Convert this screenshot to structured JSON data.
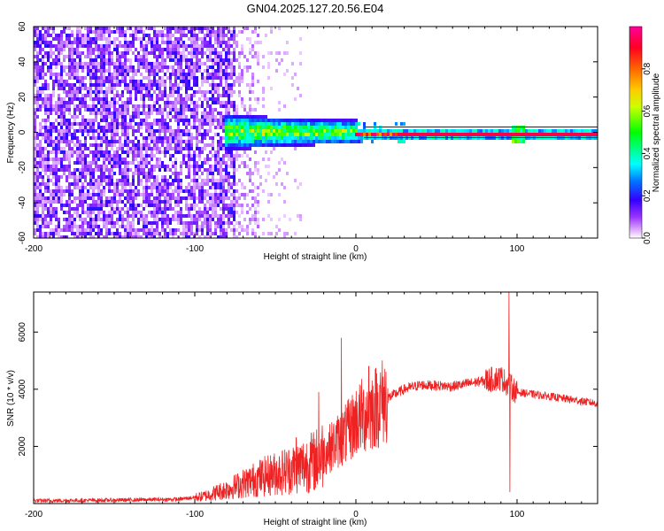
{
  "title": "GN04.2025.127.20.56.E04",
  "chart_data": [
    {
      "type": "heatmap",
      "xlabel": "Height of straight line (km)",
      "ylabel": "Frequency (Hz)",
      "xlim": [
        -200,
        150
      ],
      "ylim": [
        -60,
        60
      ],
      "xticks": [
        -200,
        -100,
        0,
        100
      ],
      "yticks": [
        -60,
        -40,
        -20,
        0,
        20,
        40,
        60
      ],
      "colorbar": {
        "label": "Normalized spectral amplitude",
        "range": [
          0.0,
          1.0
        ],
        "ticks": [
          0.0,
          0.2,
          0.4,
          0.6,
          0.8
        ],
        "tick_labels": [
          "0.0",
          "0.2",
          "0.4",
          "0.6",
          "0.8"
        ],
        "colors": [
          "#ffffff",
          "#cc88ff",
          "#7700ee",
          "#0000ff",
          "#00ffff",
          "#00ff00",
          "#ffff00",
          "#ff8800",
          "#ff0000",
          "#ff0099"
        ]
      },
      "regions": [
        {
          "x_range": [
            -200,
            -75
          ],
          "freq_range": [
            -60,
            60
          ],
          "amplitude": 0.1,
          "description_level": "noise"
        },
        {
          "x_range": [
            -75,
            -60
          ],
          "freq_range": [
            -60,
            60
          ],
          "amplitude": 0.05
        },
        {
          "x_range": [
            -80,
            0
          ],
          "freq_range": [
            -8,
            10
          ],
          "amplitude": 0.4
        },
        {
          "x_range": [
            0,
            150
          ],
          "freq_range": [
            -1.5,
            1.5
          ],
          "amplitude": 0.95
        }
      ]
    },
    {
      "type": "line",
      "xlabel": "Height of straight line (km)",
      "ylabel": "SNR (10 * v/v)",
      "xlim": [
        -200,
        150
      ],
      "ylim": [
        0,
        7400
      ],
      "xticks": [
        -200,
        -100,
        0,
        100
      ],
      "yticks": [
        2000,
        4000,
        6000
      ],
      "line_color": "#ee2222",
      "trend": {
        "x": [
          -200,
          -150,
          -110,
          -95,
          -80,
          -60,
          -40,
          -25,
          -15,
          -5,
          0,
          10,
          20,
          30,
          40,
          60,
          80,
          90,
          100,
          120,
          150
        ],
        "y": [
          100,
          120,
          150,
          250,
          500,
          900,
          1200,
          1500,
          2000,
          2500,
          2900,
          3300,
          3700,
          4000,
          4150,
          4100,
          4300,
          4400,
          3900,
          3750,
          3500
        ]
      },
      "spikes": [
        {
          "x": -37,
          "y": 2300
        },
        {
          "x": -23,
          "y": 3900
        },
        {
          "x": -9,
          "y": 5800
        },
        {
          "x": 8,
          "y": 4800
        },
        {
          "x": 95,
          "y": 7400
        },
        {
          "x": 95.5,
          "y": 400
        }
      ]
    }
  ]
}
